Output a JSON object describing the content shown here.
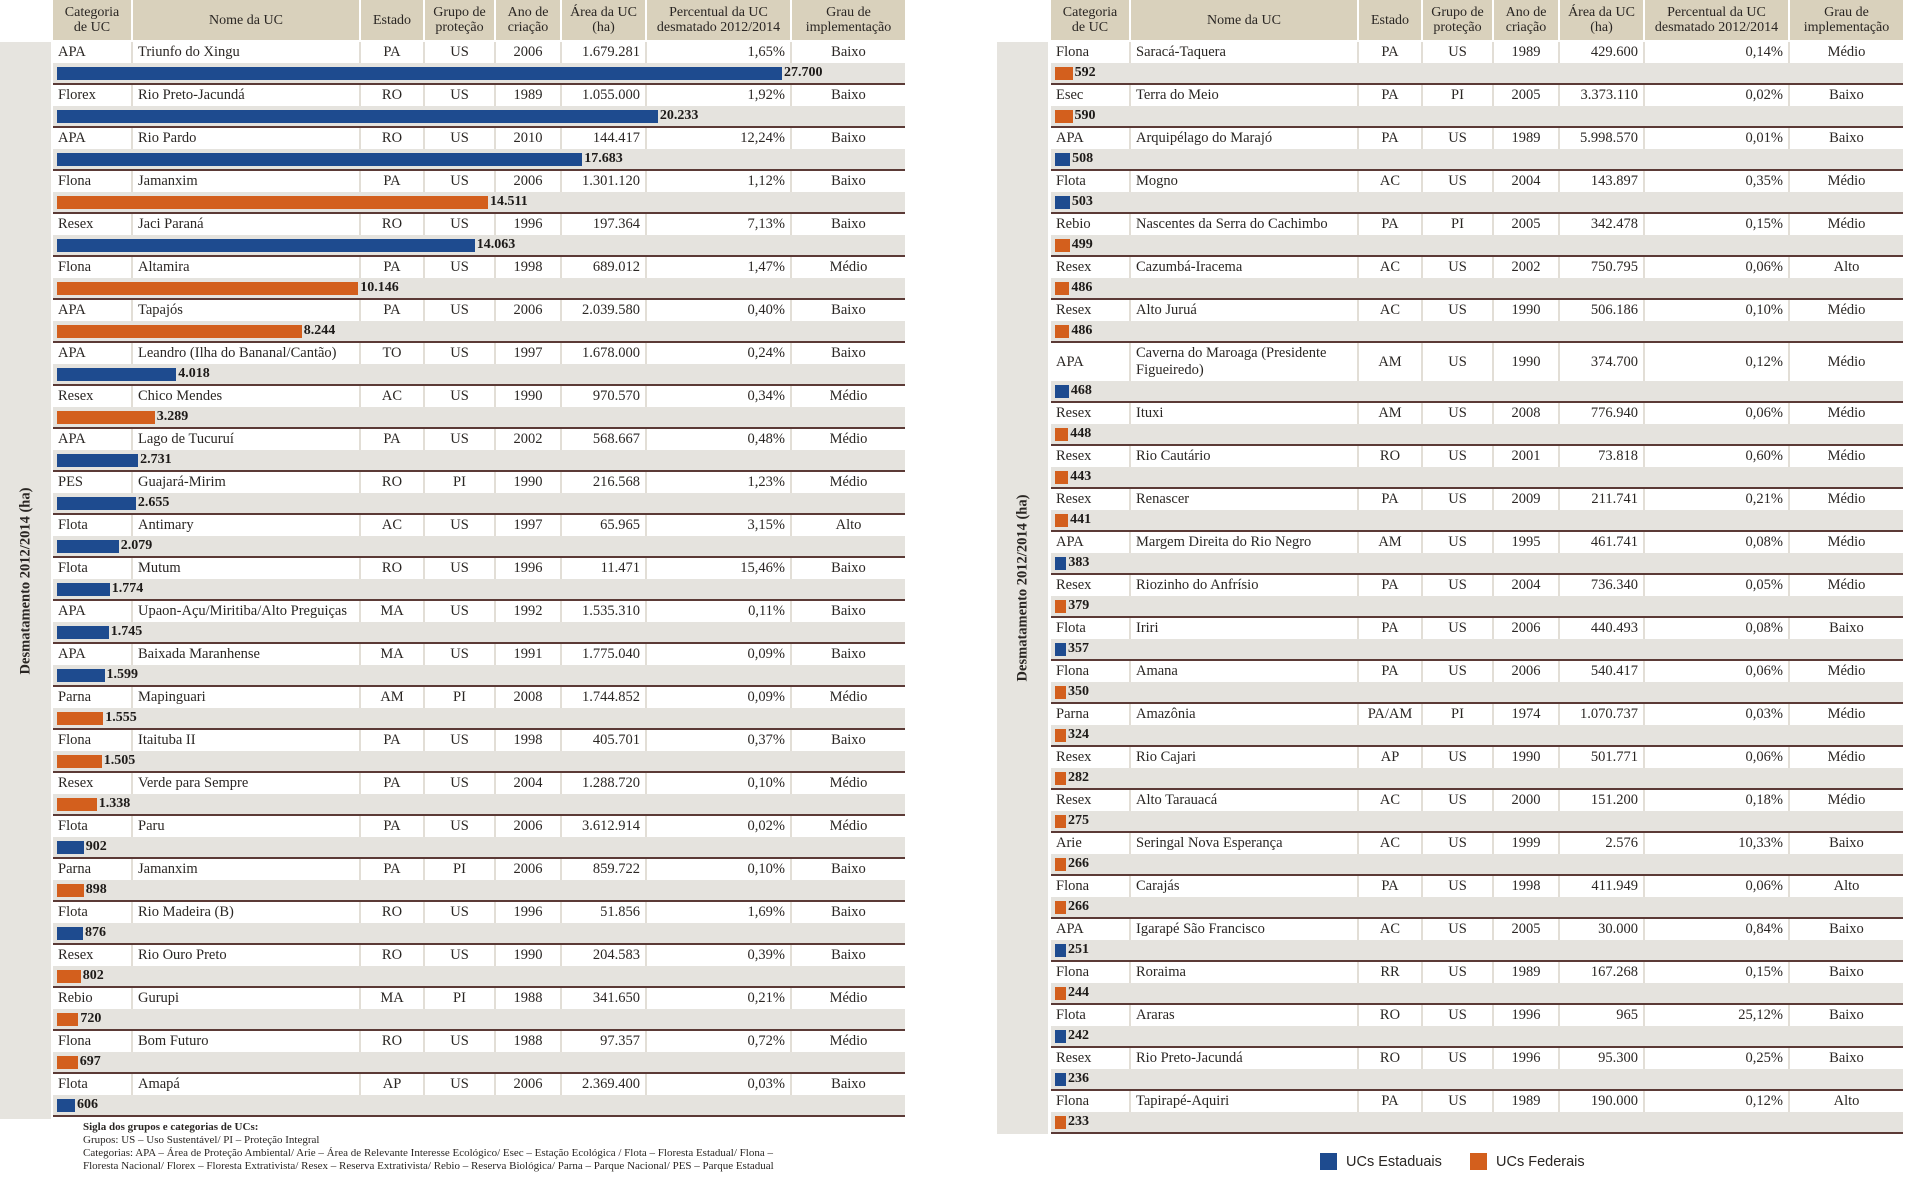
{
  "chart_data": {
    "type": "bar",
    "orientation": "horizontal",
    "ylabel": "Desmatamento 2012/2014 (ha)",
    "columns": [
      "Categoria\nde UC",
      "Nome da UC",
      "Estado",
      "Grupo de\nproteção",
      "Ano de\ncriação",
      "Área da UC\n(ha)",
      "Percentual da UC\ndesmatado 2012/2014",
      "Grau de\nimplementação"
    ],
    "series": [
      {
        "name": "UCs Estaduais",
        "color": "#1e4b8f"
      },
      {
        "name": "UCs Federais",
        "color": "#d35f1d"
      }
    ],
    "panels": [
      {
        "rows": [
          {
            "categoria": "APA",
            "nome": "Triunfo do Xingu",
            "estado": "PA",
            "grupo": "US",
            "ano": 2006,
            "area": "1.679.281",
            "percentual": "1,65%",
            "grau": "Baixo",
            "valor": 27700,
            "valor_label": "27.700",
            "serie": 0
          },
          {
            "categoria": "Florex",
            "nome": "Rio Preto-Jacundá",
            "estado": "RO",
            "grupo": "US",
            "ano": 1989,
            "area": "1.055.000",
            "percentual": "1,92%",
            "grau": "Baixo",
            "valor": 20233,
            "valor_label": "20.233",
            "serie": 0
          },
          {
            "categoria": "APA",
            "nome": "Rio Pardo",
            "estado": "RO",
            "grupo": "US",
            "ano": 2010,
            "area": "144.417",
            "percentual": "12,24%",
            "grau": "Baixo",
            "valor": 17683,
            "valor_label": "17.683",
            "serie": 0
          },
          {
            "categoria": "Flona",
            "nome": "Jamanxim",
            "estado": "PA",
            "grupo": "US",
            "ano": 2006,
            "area": "1.301.120",
            "percentual": "1,12%",
            "grau": "Baixo",
            "valor": 14511,
            "valor_label": "14.511",
            "serie": 1
          },
          {
            "categoria": "Resex",
            "nome": "Jaci Paraná",
            "estado": "RO",
            "grupo": "US",
            "ano": 1996,
            "area": "197.364",
            "percentual": "7,13%",
            "grau": "Baixo",
            "valor": 14063,
            "valor_label": "14.063",
            "serie": 0
          },
          {
            "categoria": "Flona",
            "nome": "Altamira",
            "estado": "PA",
            "grupo": "US",
            "ano": 1998,
            "area": "689.012",
            "percentual": "1,47%",
            "grau": "Médio",
            "valor": 10146,
            "valor_label": "10.146",
            "serie": 1
          },
          {
            "categoria": "APA",
            "nome": "Tapajós",
            "estado": "PA",
            "grupo": "US",
            "ano": 2006,
            "area": "2.039.580",
            "percentual": "0,40%",
            "grau": "Baixo",
            "valor": 8244,
            "valor_label": "8.244",
            "serie": 1
          },
          {
            "categoria": "APA",
            "nome": "Leandro (Ilha do Bananal/Cantão)",
            "estado": "TO",
            "grupo": "US",
            "ano": 1997,
            "area": "1.678.000",
            "percentual": "0,24%",
            "grau": "Baixo",
            "valor": 4018,
            "valor_label": "4.018",
            "serie": 0
          },
          {
            "categoria": "Resex",
            "nome": "Chico Mendes",
            "estado": "AC",
            "grupo": "US",
            "ano": 1990,
            "area": "970.570",
            "percentual": "0,34%",
            "grau": "Médio",
            "valor": 3289,
            "valor_label": "3.289",
            "serie": 1
          },
          {
            "categoria": "APA",
            "nome": "Lago de Tucuruí",
            "estado": "PA",
            "grupo": "US",
            "ano": 2002,
            "area": "568.667",
            "percentual": "0,48%",
            "grau": "Médio",
            "valor": 2731,
            "valor_label": "2.731",
            "serie": 0
          },
          {
            "categoria": "PES",
            "nome": "Guajará-Mirim",
            "estado": "RO",
            "grupo": "PI",
            "ano": 1990,
            "area": "216.568",
            "percentual": "1,23%",
            "grau": "Médio",
            "valor": 2655,
            "valor_label": "2.655",
            "serie": 0
          },
          {
            "categoria": "Flota",
            "nome": "Antimary",
            "estado": "AC",
            "grupo": "US",
            "ano": 1997,
            "area": "65.965",
            "percentual": "3,15%",
            "grau": "Alto",
            "valor": 2079,
            "valor_label": "2.079",
            "serie": 0
          },
          {
            "categoria": "Flota",
            "nome": "Mutum",
            "estado": "RO",
            "grupo": "US",
            "ano": 1996,
            "area": "11.471",
            "percentual": "15,46%",
            "grau": "Baixo",
            "valor": 1774,
            "valor_label": "1.774",
            "serie": 0
          },
          {
            "categoria": "APA",
            "nome": "Upaon-Açu/Miritiba/Alto Preguiças",
            "estado": "MA",
            "grupo": "US",
            "ano": 1992,
            "area": "1.535.310",
            "percentual": "0,11%",
            "grau": "Baixo",
            "valor": 1745,
            "valor_label": "1.745",
            "serie": 0
          },
          {
            "categoria": "APA",
            "nome": "Baixada Maranhense",
            "estado": "MA",
            "grupo": "US",
            "ano": 1991,
            "area": "1.775.040",
            "percentual": "0,09%",
            "grau": "Baixo",
            "valor": 1599,
            "valor_label": "1.599",
            "serie": 0
          },
          {
            "categoria": "Parna",
            "nome": "Mapinguari",
            "estado": "AM",
            "grupo": "PI",
            "ano": 2008,
            "area": "1.744.852",
            "percentual": "0,09%",
            "grau": "Médio",
            "valor": 1555,
            "valor_label": "1.555",
            "serie": 1
          },
          {
            "categoria": "Flona",
            "nome": "Itaituba II",
            "estado": "PA",
            "grupo": "US",
            "ano": 1998,
            "area": "405.701",
            "percentual": "0,37%",
            "grau": "Baixo",
            "valor": 1505,
            "valor_label": "1.505",
            "serie": 1
          },
          {
            "categoria": "Resex",
            "nome": "Verde para Sempre",
            "estado": "PA",
            "grupo": "US",
            "ano": 2004,
            "area": "1.288.720",
            "percentual": "0,10%",
            "grau": "Médio",
            "valor": 1338,
            "valor_label": "1.338",
            "serie": 1
          },
          {
            "categoria": "Flota",
            "nome": "Paru",
            "estado": "PA",
            "grupo": "US",
            "ano": 2006,
            "area": "3.612.914",
            "percentual": "0,02%",
            "grau": "Médio",
            "valor": 902,
            "valor_label": "902",
            "serie": 0
          },
          {
            "categoria": "Parna",
            "nome": "Jamanxim",
            "estado": "PA",
            "grupo": "PI",
            "ano": 2006,
            "area": "859.722",
            "percentual": "0,10%",
            "grau": "Baixo",
            "valor": 898,
            "valor_label": "898",
            "serie": 1
          },
          {
            "categoria": "Flota",
            "nome": "Rio Madeira (B)",
            "estado": "RO",
            "grupo": "US",
            "ano": 1996,
            "area": "51.856",
            "percentual": "1,69%",
            "grau": "Baixo",
            "valor": 876,
            "valor_label": "876",
            "serie": 0
          },
          {
            "categoria": "Resex",
            "nome": "Rio Ouro Preto",
            "estado": "RO",
            "grupo": "US",
            "ano": 1990,
            "area": "204.583",
            "percentual": "0,39%",
            "grau": "Baixo",
            "valor": 802,
            "valor_label": "802",
            "serie": 1
          },
          {
            "categoria": "Rebio",
            "nome": "Gurupi",
            "estado": "MA",
            "grupo": "PI",
            "ano": 1988,
            "area": "341.650",
            "percentual": "0,21%",
            "grau": "Médio",
            "valor": 720,
            "valor_label": "720",
            "serie": 1
          },
          {
            "categoria": "Flona",
            "nome": "Bom Futuro",
            "estado": "RO",
            "grupo": "US",
            "ano": 1988,
            "area": "97.357",
            "percentual": "0,72%",
            "grau": "Médio",
            "valor": 697,
            "valor_label": "697",
            "serie": 1
          },
          {
            "categoria": "Flota",
            "nome": "Amapá",
            "estado": "AP",
            "grupo": "US",
            "ano": 2006,
            "area": "2.369.400",
            "percentual": "0,03%",
            "grau": "Baixo",
            "valor": 606,
            "valor_label": "606",
            "serie": 0
          }
        ]
      },
      {
        "rows": [
          {
            "categoria": "Flona",
            "nome": "Saracá-Taquera",
            "estado": "PA",
            "grupo": "US",
            "ano": 1989,
            "area": "429.600",
            "percentual": "0,14%",
            "grau": "Médio",
            "valor": 592,
            "valor_label": "592",
            "serie": 1
          },
          {
            "categoria": "Esec",
            "nome": "Terra do Meio",
            "estado": "PA",
            "grupo": "PI",
            "ano": 2005,
            "area": "3.373.110",
            "percentual": "0,02%",
            "grau": "Baixo",
            "valor": 590,
            "valor_label": "590",
            "serie": 1
          },
          {
            "categoria": "APA",
            "nome": "Arquipélago do Marajó",
            "estado": "PA",
            "grupo": "US",
            "ano": 1989,
            "area": "5.998.570",
            "percentual": "0,01%",
            "grau": "Baixo",
            "valor": 508,
            "valor_label": "508",
            "serie": 0
          },
          {
            "categoria": "Flota",
            "nome": "Mogno",
            "estado": "AC",
            "grupo": "US",
            "ano": 2004,
            "area": "143.897",
            "percentual": "0,35%",
            "grau": "Médio",
            "valor": 503,
            "valor_label": "503",
            "serie": 0
          },
          {
            "categoria": "Rebio",
            "nome": "Nascentes da Serra do Cachimbo",
            "estado": "PA",
            "grupo": "PI",
            "ano": 2005,
            "area": "342.478",
            "percentual": "0,15%",
            "grau": "Médio",
            "valor": 499,
            "valor_label": "499",
            "serie": 1
          },
          {
            "categoria": "Resex",
            "nome": "Cazumbá-Iracema",
            "estado": "AC",
            "grupo": "US",
            "ano": 2002,
            "area": "750.795",
            "percentual": "0,06%",
            "grau": "Alto",
            "valor": 486,
            "valor_label": "486",
            "serie": 1
          },
          {
            "categoria": "Resex",
            "nome": "Alto Juruá",
            "estado": "AC",
            "grupo": "US",
            "ano": 1990,
            "area": "506.186",
            "percentual": "0,10%",
            "grau": "Médio",
            "valor": 486,
            "valor_label": "486",
            "serie": 1
          },
          {
            "categoria": "APA",
            "nome": "Caverna do Maroaga (Presidente Figueiredo)",
            "estado": "AM",
            "grupo": "US",
            "ano": 1990,
            "area": "374.700",
            "percentual": "0,12%",
            "grau": "Médio",
            "valor": 468,
            "valor_label": "468",
            "serie": 0
          },
          {
            "categoria": "Resex",
            "nome": "Ituxi",
            "estado": "AM",
            "grupo": "US",
            "ano": 2008,
            "area": "776.940",
            "percentual": "0,06%",
            "grau": "Médio",
            "valor": 448,
            "valor_label": "448",
            "serie": 1
          },
          {
            "categoria": "Resex",
            "nome": "Rio Cautário",
            "estado": "RO",
            "grupo": "US",
            "ano": 2001,
            "area": "73.818",
            "percentual": "0,60%",
            "grau": "Médio",
            "valor": 443,
            "valor_label": "443",
            "serie": 1
          },
          {
            "categoria": "Resex",
            "nome": "Renascer",
            "estado": "PA",
            "grupo": "US",
            "ano": 2009,
            "area": "211.741",
            "percentual": "0,21%",
            "grau": "Médio",
            "valor": 441,
            "valor_label": "441",
            "serie": 1
          },
          {
            "categoria": "APA",
            "nome": "Margem Direita do Rio Negro",
            "estado": "AM",
            "grupo": "US",
            "ano": 1995,
            "area": "461.741",
            "percentual": "0,08%",
            "grau": "Médio",
            "valor": 383,
            "valor_label": "383",
            "serie": 0
          },
          {
            "categoria": "Resex",
            "nome": "Riozinho do Anfrísio",
            "estado": "PA",
            "grupo": "US",
            "ano": 2004,
            "area": "736.340",
            "percentual": "0,05%",
            "grau": "Médio",
            "valor": 379,
            "valor_label": "379",
            "serie": 1
          },
          {
            "categoria": "Flota",
            "nome": "Iriri",
            "estado": "PA",
            "grupo": "US",
            "ano": 2006,
            "area": "440.493",
            "percentual": "0,08%",
            "grau": "Baixo",
            "valor": 357,
            "valor_label": "357",
            "serie": 0
          },
          {
            "categoria": "Flona",
            "nome": "Amana",
            "estado": "PA",
            "grupo": "US",
            "ano": 2006,
            "area": "540.417",
            "percentual": "0,06%",
            "grau": "Médio",
            "valor": 350,
            "valor_label": "350",
            "serie": 1
          },
          {
            "categoria": "Parna",
            "nome": "Amazônia",
            "estado": "PA/AM",
            "grupo": "PI",
            "ano": 1974,
            "area": "1.070.737",
            "percentual": "0,03%",
            "grau": "Médio",
            "valor": 324,
            "valor_label": "324",
            "serie": 1
          },
          {
            "categoria": "Resex",
            "nome": "Rio Cajari",
            "estado": "AP",
            "grupo": "US",
            "ano": 1990,
            "area": "501.771",
            "percentual": "0,06%",
            "grau": "Médio",
            "valor": 282,
            "valor_label": "282",
            "serie": 1
          },
          {
            "categoria": "Resex",
            "nome": "Alto Tarauacá",
            "estado": "AC",
            "grupo": "US",
            "ano": 2000,
            "area": "151.200",
            "percentual": "0,18%",
            "grau": "Médio",
            "valor": 275,
            "valor_label": "275",
            "serie": 1
          },
          {
            "categoria": "Arie",
            "nome": "Seringal Nova Esperança",
            "estado": "AC",
            "grupo": "US",
            "ano": 1999,
            "area": "2.576",
            "percentual": "10,33%",
            "grau": "Baixo",
            "valor": 266,
            "valor_label": "266",
            "serie": 1
          },
          {
            "categoria": "Flona",
            "nome": "Carajás",
            "estado": "PA",
            "grupo": "US",
            "ano": 1998,
            "area": "411.949",
            "percentual": "0,06%",
            "grau": "Alto",
            "valor": 266,
            "valor_label": "266",
            "serie": 1
          },
          {
            "categoria": "APA",
            "nome": "Igarapé São Francisco",
            "estado": "AC",
            "grupo": "US",
            "ano": 2005,
            "area": "30.000",
            "percentual": "0,84%",
            "grau": "Baixo",
            "valor": 251,
            "valor_label": "251",
            "serie": 0
          },
          {
            "categoria": "Flona",
            "nome": "Roraima",
            "estado": "RR",
            "grupo": "US",
            "ano": 1989,
            "area": "167.268",
            "percentual": "0,15%",
            "grau": "Baixo",
            "valor": 244,
            "valor_label": "244",
            "serie": 1
          },
          {
            "categoria": "Flota",
            "nome": "Araras",
            "estado": "RO",
            "grupo": "US",
            "ano": 1996,
            "area": "965",
            "percentual": "25,12%",
            "grau": "Baixo",
            "valor": 242,
            "valor_label": "242",
            "serie": 0
          },
          {
            "categoria": "Resex",
            "nome": "Rio Preto-Jacundá",
            "estado": "RO",
            "grupo": "US",
            "ano": 1996,
            "area": "95.300",
            "percentual": "0,25%",
            "grau": "Baixo",
            "valor": 236,
            "valor_label": "236",
            "serie": 0
          },
          {
            "categoria": "Flona",
            "nome": "Tapirapé-Aquiri",
            "estado": "PA",
            "grupo": "US",
            "ano": 1989,
            "area": "190.000",
            "percentual": "0,12%",
            "grau": "Alto",
            "valor": 233,
            "valor_label": "233",
            "serie": 1
          }
        ]
      }
    ]
  },
  "footnote": {
    "title": "Sigla dos grupos e categorias de UCs:",
    "lines": [
      "Grupos: US – Uso Sustentável/ PI – Proteção Integral",
      "Categorias: APA – Área de Proteção Ambiental/ Arie – Área de Relevante Interesse Ecológico/ Esec – Estação Ecológica / Flota – Floresta Estadual/ Flona –",
      "Floresta Nacional/ Florex – Floresta Extrativista/ Resex – Reserva Extrativista/ Rebio – Reserva Biológica/ Parna – Parque Nacional/ PES – Parque Estadual"
    ]
  }
}
